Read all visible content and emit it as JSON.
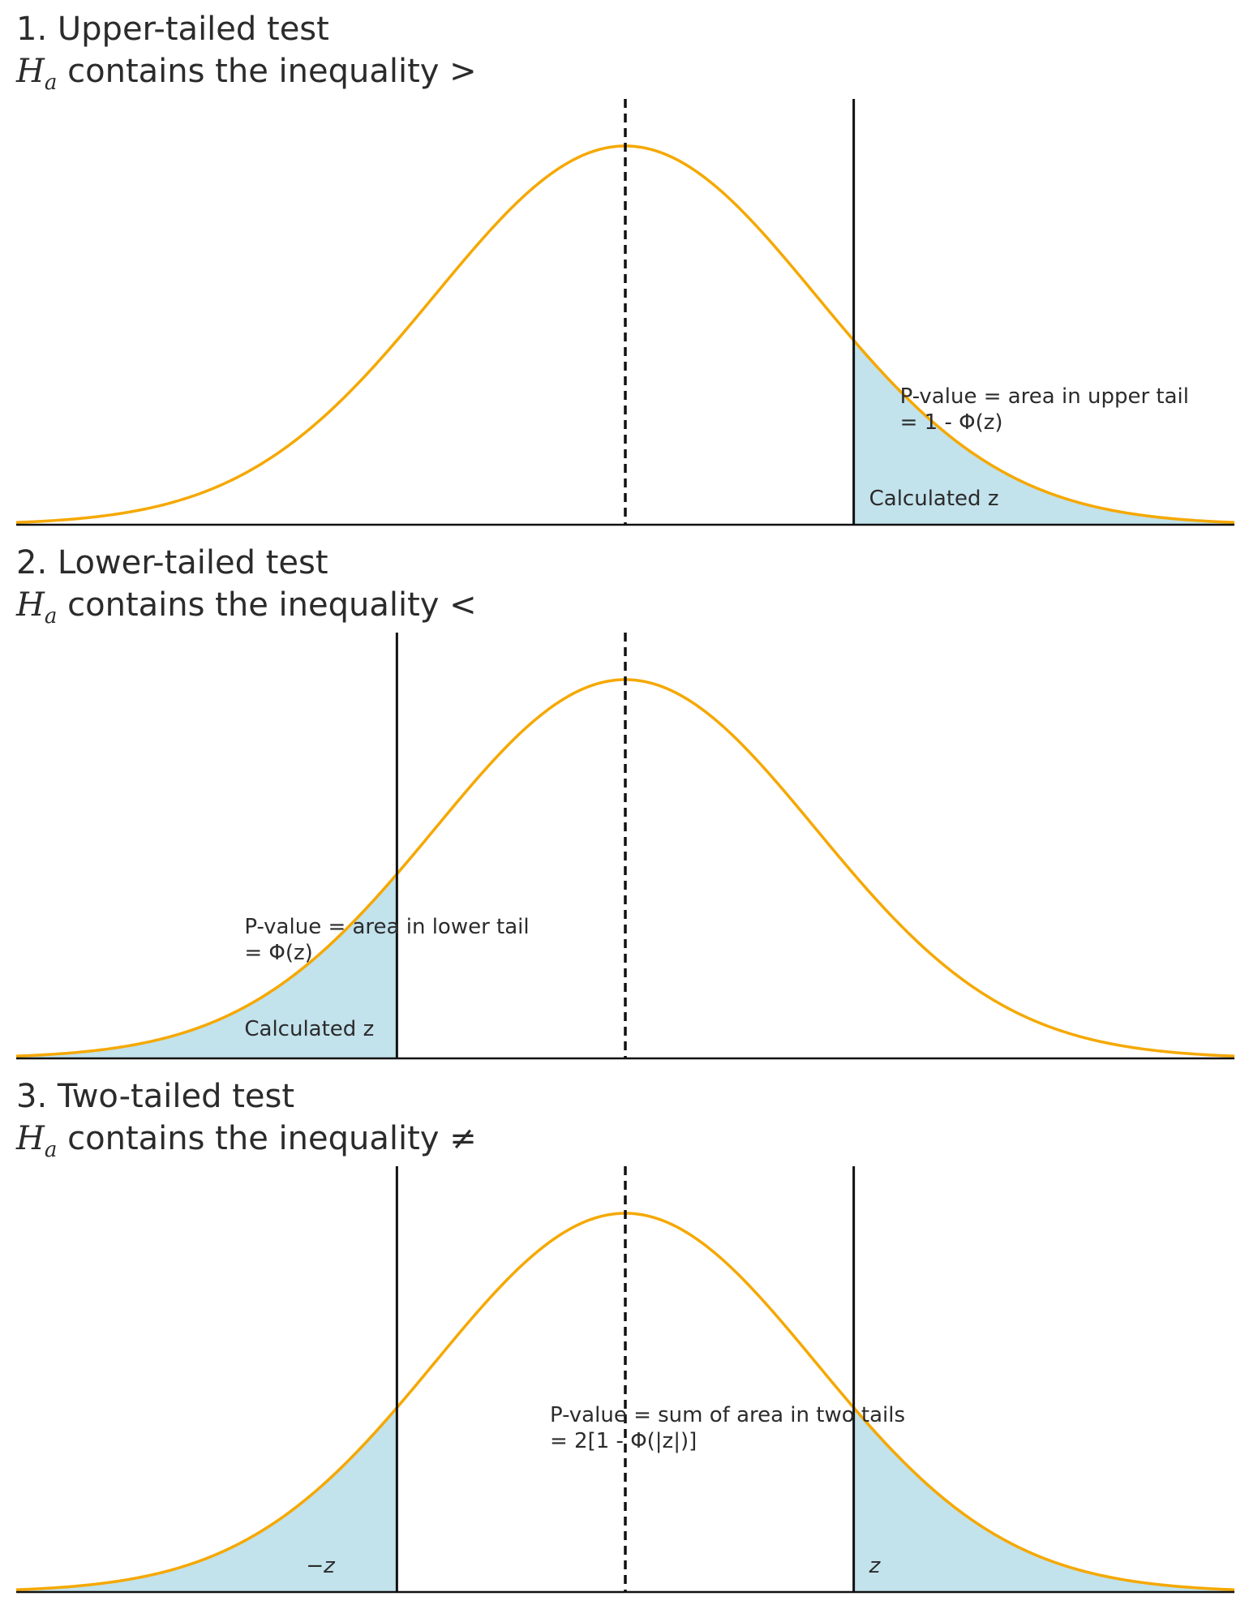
{
  "chart_data": [
    {
      "type": "area",
      "distribution": "standard normal",
      "title": "1. Upper-tailed test",
      "subtitle_prefix": "H",
      "subtitle_sub": "a",
      "subtitle_text": " contains the inequality ",
      "subtitle_symbol": ">",
      "xlim": [
        -3.2,
        3.2
      ],
      "ylim": [
        0,
        0.4
      ],
      "mean_line_x": 0,
      "z_lines": [
        1.2
      ],
      "shaded_tails": [
        {
          "from": 1.2,
          "to": 3.2
        }
      ],
      "annotation": [
        "P-value = area in upper tail",
        "= 1 - Φ(z)"
      ],
      "z_labels": [
        "Calculated z"
      ],
      "curve_color": "#f5a800",
      "fill_color": "#add8e6"
    },
    {
      "type": "area",
      "distribution": "standard normal",
      "title": "2. Lower-tailed test",
      "subtitle_prefix": "H",
      "subtitle_sub": "a",
      "subtitle_text": " contains the inequality ",
      "subtitle_symbol": "<",
      "xlim": [
        -3.2,
        3.2
      ],
      "ylim": [
        0,
        0.4
      ],
      "mean_line_x": 0,
      "z_lines": [
        -1.2
      ],
      "shaded_tails": [
        {
          "from": -3.2,
          "to": -1.2
        }
      ],
      "annotation": [
        "P-value = area in lower tail",
        "= Φ(z)"
      ],
      "z_labels": [
        "Calculated z"
      ],
      "curve_color": "#f5a800",
      "fill_color": "#add8e6"
    },
    {
      "type": "area",
      "distribution": "standard normal",
      "title": "3. Two-tailed test",
      "subtitle_prefix": "H",
      "subtitle_sub": "a",
      "subtitle_text": " contains the inequality ",
      "subtitle_symbol": "≠",
      "xlim": [
        -3.2,
        3.2
      ],
      "ylim": [
        0,
        0.4
      ],
      "mean_line_x": 0,
      "z_lines": [
        -1.2,
        1.2
      ],
      "shaded_tails": [
        {
          "from": -3.2,
          "to": -1.2
        },
        {
          "from": 1.2,
          "to": 3.2
        }
      ],
      "annotation": [
        "P-value = sum of area in two tails",
        "= 2[1 - Φ(|z|)]"
      ],
      "z_labels": [
        "−z",
        "z"
      ],
      "curve_color": "#f5a800",
      "fill_color": "#add8e6"
    }
  ]
}
